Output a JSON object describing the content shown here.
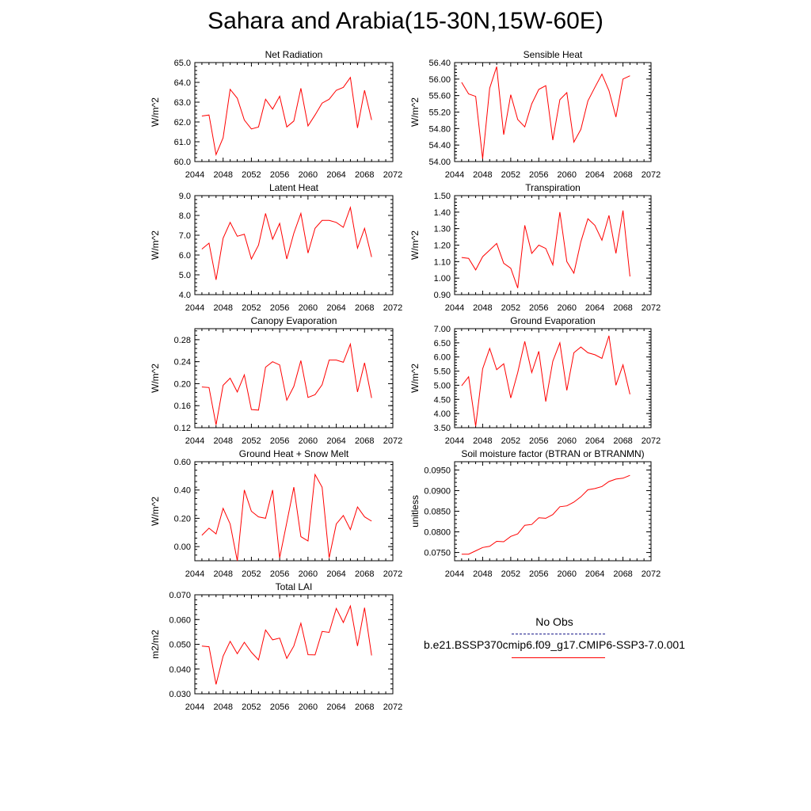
{
  "title": "Sahara and Arabia(15-30N,15W-60E)",
  "colors": {
    "line": "#ff0000",
    "axis": "#000000",
    "obs_line": "#1c1c8c"
  },
  "legend": {
    "obs_label": "No Obs",
    "model_label": "b.e21.BSSP370cmip6.f09_g17.CMIP6-SSP3-7.0.001"
  },
  "chart_data": [
    {
      "type": "line",
      "title": "Net Radiation",
      "ylabel": "W/m^2",
      "xlim": [
        2044,
        2072
      ],
      "x_ticks": [
        2044,
        2048,
        2052,
        2056,
        2060,
        2064,
        2068,
        2072
      ],
      "ylim": [
        60.0,
        65.0
      ],
      "y_ticks": [
        "60.0",
        "61.0",
        "62.0",
        "63.0",
        "64.0",
        "65.0"
      ],
      "x": [
        2045,
        2046,
        2047,
        2048,
        2049,
        2050,
        2051,
        2052,
        2053,
        2054,
        2055,
        2056,
        2057,
        2058,
        2059,
        2060,
        2061,
        2062,
        2063,
        2064,
        2065,
        2066,
        2067,
        2068,
        2069
      ],
      "values": [
        62.3,
        62.35,
        60.35,
        61.2,
        63.65,
        63.2,
        62.1,
        61.65,
        61.75,
        63.15,
        62.65,
        63.3,
        61.75,
        62.05,
        63.7,
        61.8,
        62.35,
        62.95,
        63.15,
        63.6,
        63.75,
        64.25,
        61.7,
        63.6,
        62.1
      ]
    },
    {
      "type": "line",
      "title": "Sensible Heat",
      "ylabel": "W/m^2",
      "xlim": [
        2044,
        2072
      ],
      "x_ticks": [
        2044,
        2048,
        2052,
        2056,
        2060,
        2064,
        2068,
        2072
      ],
      "ylim": [
        54.0,
        56.4
      ],
      "y_ticks": [
        "54.00",
        "54.40",
        "54.80",
        "55.20",
        "55.60",
        "56.00",
        "56.40"
      ],
      "x": [
        2045,
        2046,
        2047,
        2048,
        2049,
        2050,
        2051,
        2052,
        2053,
        2054,
        2055,
        2056,
        2057,
        2058,
        2059,
        2060,
        2061,
        2062,
        2063,
        2064,
        2065,
        2066,
        2067,
        2068,
        2069
      ],
      "values": [
        55.92,
        55.64,
        55.58,
        54.07,
        55.78,
        56.3,
        54.65,
        55.62,
        55.02,
        54.84,
        55.4,
        55.75,
        55.84,
        54.52,
        55.5,
        55.67,
        54.47,
        54.78,
        55.47,
        55.8,
        56.12,
        55.72,
        55.08,
        56.0,
        56.08
      ]
    },
    {
      "type": "line",
      "title": "Latent Heat",
      "ylabel": "W/m^2",
      "xlim": [
        2044,
        2072
      ],
      "x_ticks": [
        2044,
        2048,
        2052,
        2056,
        2060,
        2064,
        2068,
        2072
      ],
      "ylim": [
        4.0,
        9.0
      ],
      "y_ticks": [
        "4.0",
        "5.0",
        "6.0",
        "7.0",
        "8.0",
        "9.0"
      ],
      "x": [
        2045,
        2046,
        2047,
        2048,
        2049,
        2050,
        2051,
        2052,
        2053,
        2054,
        2055,
        2056,
        2057,
        2058,
        2059,
        2060,
        2061,
        2062,
        2063,
        2064,
        2065,
        2066,
        2067,
        2068,
        2069
      ],
      "values": [
        6.3,
        6.6,
        4.75,
        6.85,
        7.65,
        6.95,
        7.05,
        5.8,
        6.5,
        8.1,
        6.8,
        7.6,
        5.8,
        7.1,
        8.1,
        6.1,
        7.35,
        7.75,
        7.75,
        7.65,
        7.4,
        8.4,
        6.35,
        7.35,
        5.9
      ]
    },
    {
      "type": "line",
      "title": "Transpiration",
      "ylabel": "W/m^2",
      "xlim": [
        2044,
        2072
      ],
      "x_ticks": [
        2044,
        2048,
        2052,
        2056,
        2060,
        2064,
        2068,
        2072
      ],
      "ylim": [
        0.9,
        1.5
      ],
      "y_ticks": [
        "0.90",
        "1.00",
        "1.10",
        "1.20",
        "1.30",
        "1.40",
        "1.50"
      ],
      "x": [
        2045,
        2046,
        2047,
        2048,
        2049,
        2050,
        2051,
        2052,
        2053,
        2054,
        2055,
        2056,
        2057,
        2058,
        2059,
        2060,
        2061,
        2062,
        2063,
        2064,
        2065,
        2066,
        2067,
        2068,
        2069
      ],
      "values": [
        1.125,
        1.12,
        1.05,
        1.13,
        1.17,
        1.21,
        1.09,
        1.06,
        0.94,
        1.32,
        1.15,
        1.2,
        1.18,
        1.08,
        1.4,
        1.1,
        1.03,
        1.22,
        1.36,
        1.32,
        1.23,
        1.38,
        1.15,
        1.41,
        1.01
      ]
    },
    {
      "type": "line",
      "title": "Canopy Evaporation",
      "ylabel": "W/m^2",
      "xlim": [
        2044,
        2072
      ],
      "x_ticks": [
        2044,
        2048,
        2052,
        2056,
        2060,
        2064,
        2068,
        2072
      ],
      "ylim": [
        0.12,
        0.3
      ],
      "y_ticks": [
        "0.12",
        "0.16",
        "0.20",
        "0.24",
        "0.28"
      ],
      "x": [
        2045,
        2046,
        2047,
        2048,
        2049,
        2050,
        2051,
        2052,
        2053,
        2054,
        2055,
        2056,
        2057,
        2058,
        2059,
        2060,
        2061,
        2062,
        2063,
        2064,
        2065,
        2066,
        2067,
        2068,
        2069
      ],
      "values": [
        0.194,
        0.193,
        0.125,
        0.197,
        0.21,
        0.185,
        0.216,
        0.153,
        0.152,
        0.23,
        0.24,
        0.234,
        0.17,
        0.195,
        0.242,
        0.175,
        0.18,
        0.198,
        0.243,
        0.243,
        0.239,
        0.272,
        0.185,
        0.238,
        0.174
      ]
    },
    {
      "type": "line",
      "title": "Ground Evaporation",
      "ylabel": "W/m^2",
      "xlim": [
        2044,
        2072
      ],
      "x_ticks": [
        2044,
        2048,
        2052,
        2056,
        2060,
        2064,
        2068,
        2072
      ],
      "ylim": [
        3.5,
        7.0
      ],
      "y_ticks": [
        "3.50",
        "4.00",
        "4.50",
        "5.00",
        "5.50",
        "6.00",
        "6.50",
        "7.00"
      ],
      "x": [
        2045,
        2046,
        2047,
        2048,
        2049,
        2050,
        2051,
        2052,
        2053,
        2054,
        2055,
        2056,
        2057,
        2058,
        2059,
        2060,
        2061,
        2062,
        2063,
        2064,
        2065,
        2066,
        2067,
        2068,
        2069
      ],
      "values": [
        4.98,
        5.3,
        3.55,
        5.58,
        6.3,
        5.55,
        5.76,
        4.55,
        5.45,
        6.55,
        5.45,
        6.2,
        4.42,
        5.85,
        6.5,
        4.82,
        6.15,
        6.35,
        6.15,
        6.08,
        5.95,
        6.75,
        5.0,
        5.72,
        4.68
      ]
    },
    {
      "type": "line",
      "title": "Ground Heat + Snow Melt",
      "ylabel": "W/m^2",
      "xlim": [
        2044,
        2072
      ],
      "x_ticks": [
        2044,
        2048,
        2052,
        2056,
        2060,
        2064,
        2068,
        2072
      ],
      "ylim": [
        -0.1,
        0.6
      ],
      "y_ticks": [
        "0.00",
        "0.20",
        "0.40",
        "0.60"
      ],
      "y_tick_values": [
        0,
        0.2,
        0.4,
        0.6
      ],
      "x": [
        2045,
        2046,
        2047,
        2048,
        2049,
        2050,
        2051,
        2052,
        2053,
        2054,
        2055,
        2056,
        2057,
        2058,
        2059,
        2060,
        2061,
        2062,
        2063,
        2064,
        2065,
        2066,
        2067,
        2068,
        2069
      ],
      "values": [
        0.08,
        0.13,
        0.09,
        0.27,
        0.16,
        -0.1,
        0.4,
        0.25,
        0.21,
        0.2,
        0.4,
        -0.08,
        0.17,
        0.42,
        0.07,
        0.04,
        0.51,
        0.42,
        -0.08,
        0.16,
        0.22,
        0.12,
        0.28,
        0.21,
        0.18
      ]
    },
    {
      "type": "line",
      "title": "Soil moisture factor (BTRAN or BTRANMN)",
      "ylabel": "unitless",
      "xlim": [
        2044,
        2072
      ],
      "x_ticks": [
        2044,
        2048,
        2052,
        2056,
        2060,
        2064,
        2068,
        2072
      ],
      "ylim": [
        0.073,
        0.097
      ],
      "y_ticks": [
        "0.0750",
        "0.0800",
        "0.0850",
        "0.0900",
        "0.0950"
      ],
      "y_tick_values": [
        0.075,
        0.08,
        0.085,
        0.09,
        0.095
      ],
      "x": [
        2045,
        2046,
        2047,
        2048,
        2049,
        2050,
        2051,
        2052,
        2053,
        2054,
        2055,
        2056,
        2057,
        2058,
        2059,
        2060,
        2061,
        2062,
        2063,
        2064,
        2065,
        2066,
        2067,
        2068,
        2069
      ],
      "values": [
        0.0746,
        0.0746,
        0.0754,
        0.0762,
        0.0765,
        0.0777,
        0.0776,
        0.0789,
        0.0795,
        0.0816,
        0.0818,
        0.0834,
        0.0833,
        0.0842,
        0.0861,
        0.0863,
        0.0872,
        0.0885,
        0.0902,
        0.0905,
        0.091,
        0.0922,
        0.0928,
        0.093,
        0.0937
      ]
    },
    {
      "type": "line",
      "title": "Total LAI",
      "ylabel": "m2/m2",
      "xlim": [
        2044,
        2072
      ],
      "x_ticks": [
        2044,
        2048,
        2052,
        2056,
        2060,
        2064,
        2068,
        2072
      ],
      "ylim": [
        0.03,
        0.07
      ],
      "y_ticks": [
        "0.030",
        "0.040",
        "0.050",
        "0.060",
        "0.070"
      ],
      "x": [
        2045,
        2046,
        2047,
        2048,
        2049,
        2050,
        2051,
        2052,
        2053,
        2054,
        2055,
        2056,
        2057,
        2058,
        2059,
        2060,
        2061,
        2062,
        2063,
        2064,
        2065,
        2066,
        2067,
        2068,
        2069
      ],
      "values": [
        0.0493,
        0.049,
        0.0338,
        0.0452,
        0.0512,
        0.0462,
        0.0508,
        0.0468,
        0.0437,
        0.0558,
        0.0518,
        0.0525,
        0.0443,
        0.0493,
        0.0585,
        0.0458,
        0.0457,
        0.0552,
        0.0548,
        0.0645,
        0.0588,
        0.0655,
        0.0493,
        0.0648,
        0.0455
      ]
    }
  ]
}
